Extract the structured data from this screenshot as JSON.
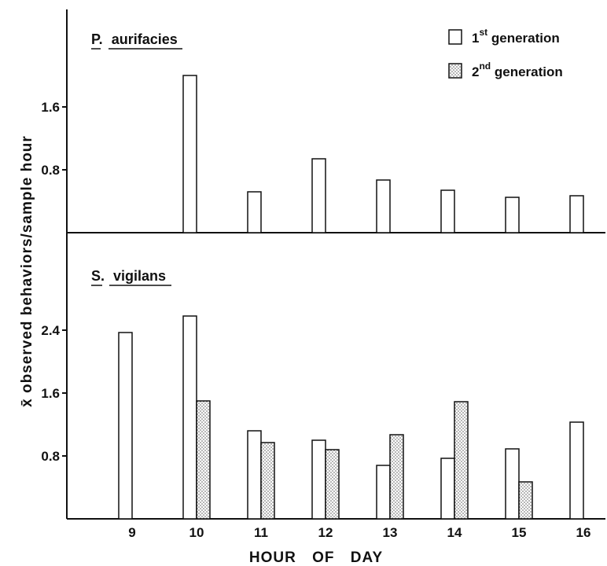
{
  "chart_data": {
    "type": "bar",
    "xlabel": "HOUR OF DAY",
    "ylabel": "x̄ observed behaviors/sample hour",
    "x_ticks": [
      "9",
      "10",
      "11",
      "12",
      "13",
      "14",
      "15",
      "16"
    ],
    "legend": {
      "placement": "top-right",
      "entries": [
        {
          "base": "1",
          "sup": "st",
          "rest": " generation"
        },
        {
          "base": "2",
          "sup": "nd",
          "rest": " generation"
        }
      ]
    },
    "colors": {
      "first": "#ffffff",
      "second_dots": "#555555"
    },
    "panels": [
      {
        "title_prefix": "P.",
        "title_name": "aurifacies",
        "ylim": [
          0,
          2.4
        ],
        "y_ticks": [
          {
            "value": 0.8,
            "label": "0.8"
          },
          {
            "value": 1.6,
            "label": "1.6"
          }
        ],
        "series": [
          {
            "name": "1st generation",
            "x": [
              10,
              11,
              12,
              13,
              14,
              15,
              16
            ],
            "values": [
              2.0,
              0.52,
              0.94,
              0.67,
              0.54,
              0.45,
              0.47
            ]
          },
          {
            "name": "2nd generation",
            "x": [],
            "values": []
          }
        ]
      },
      {
        "title_prefix": "S.",
        "title_name": "vigilans",
        "ylim": [
          0,
          3.2
        ],
        "y_ticks": [
          {
            "value": 0.8,
            "label": "0.8"
          },
          {
            "value": 1.6,
            "label": "1.6"
          },
          {
            "value": 2.4,
            "label": "2.4"
          }
        ],
        "series": [
          {
            "name": "1st generation",
            "x": [
              9,
              10,
              11,
              12,
              13,
              14,
              15,
              16
            ],
            "values": [
              2.37,
              2.58,
              1.12,
              1.0,
              0.68,
              0.77,
              0.89,
              1.23
            ]
          },
          {
            "name": "2nd generation",
            "x": [
              10,
              11,
              12,
              13,
              14,
              15
            ],
            "values": [
              1.5,
              0.97,
              0.88,
              1.07,
              1.49,
              0.47
            ]
          }
        ]
      }
    ]
  }
}
